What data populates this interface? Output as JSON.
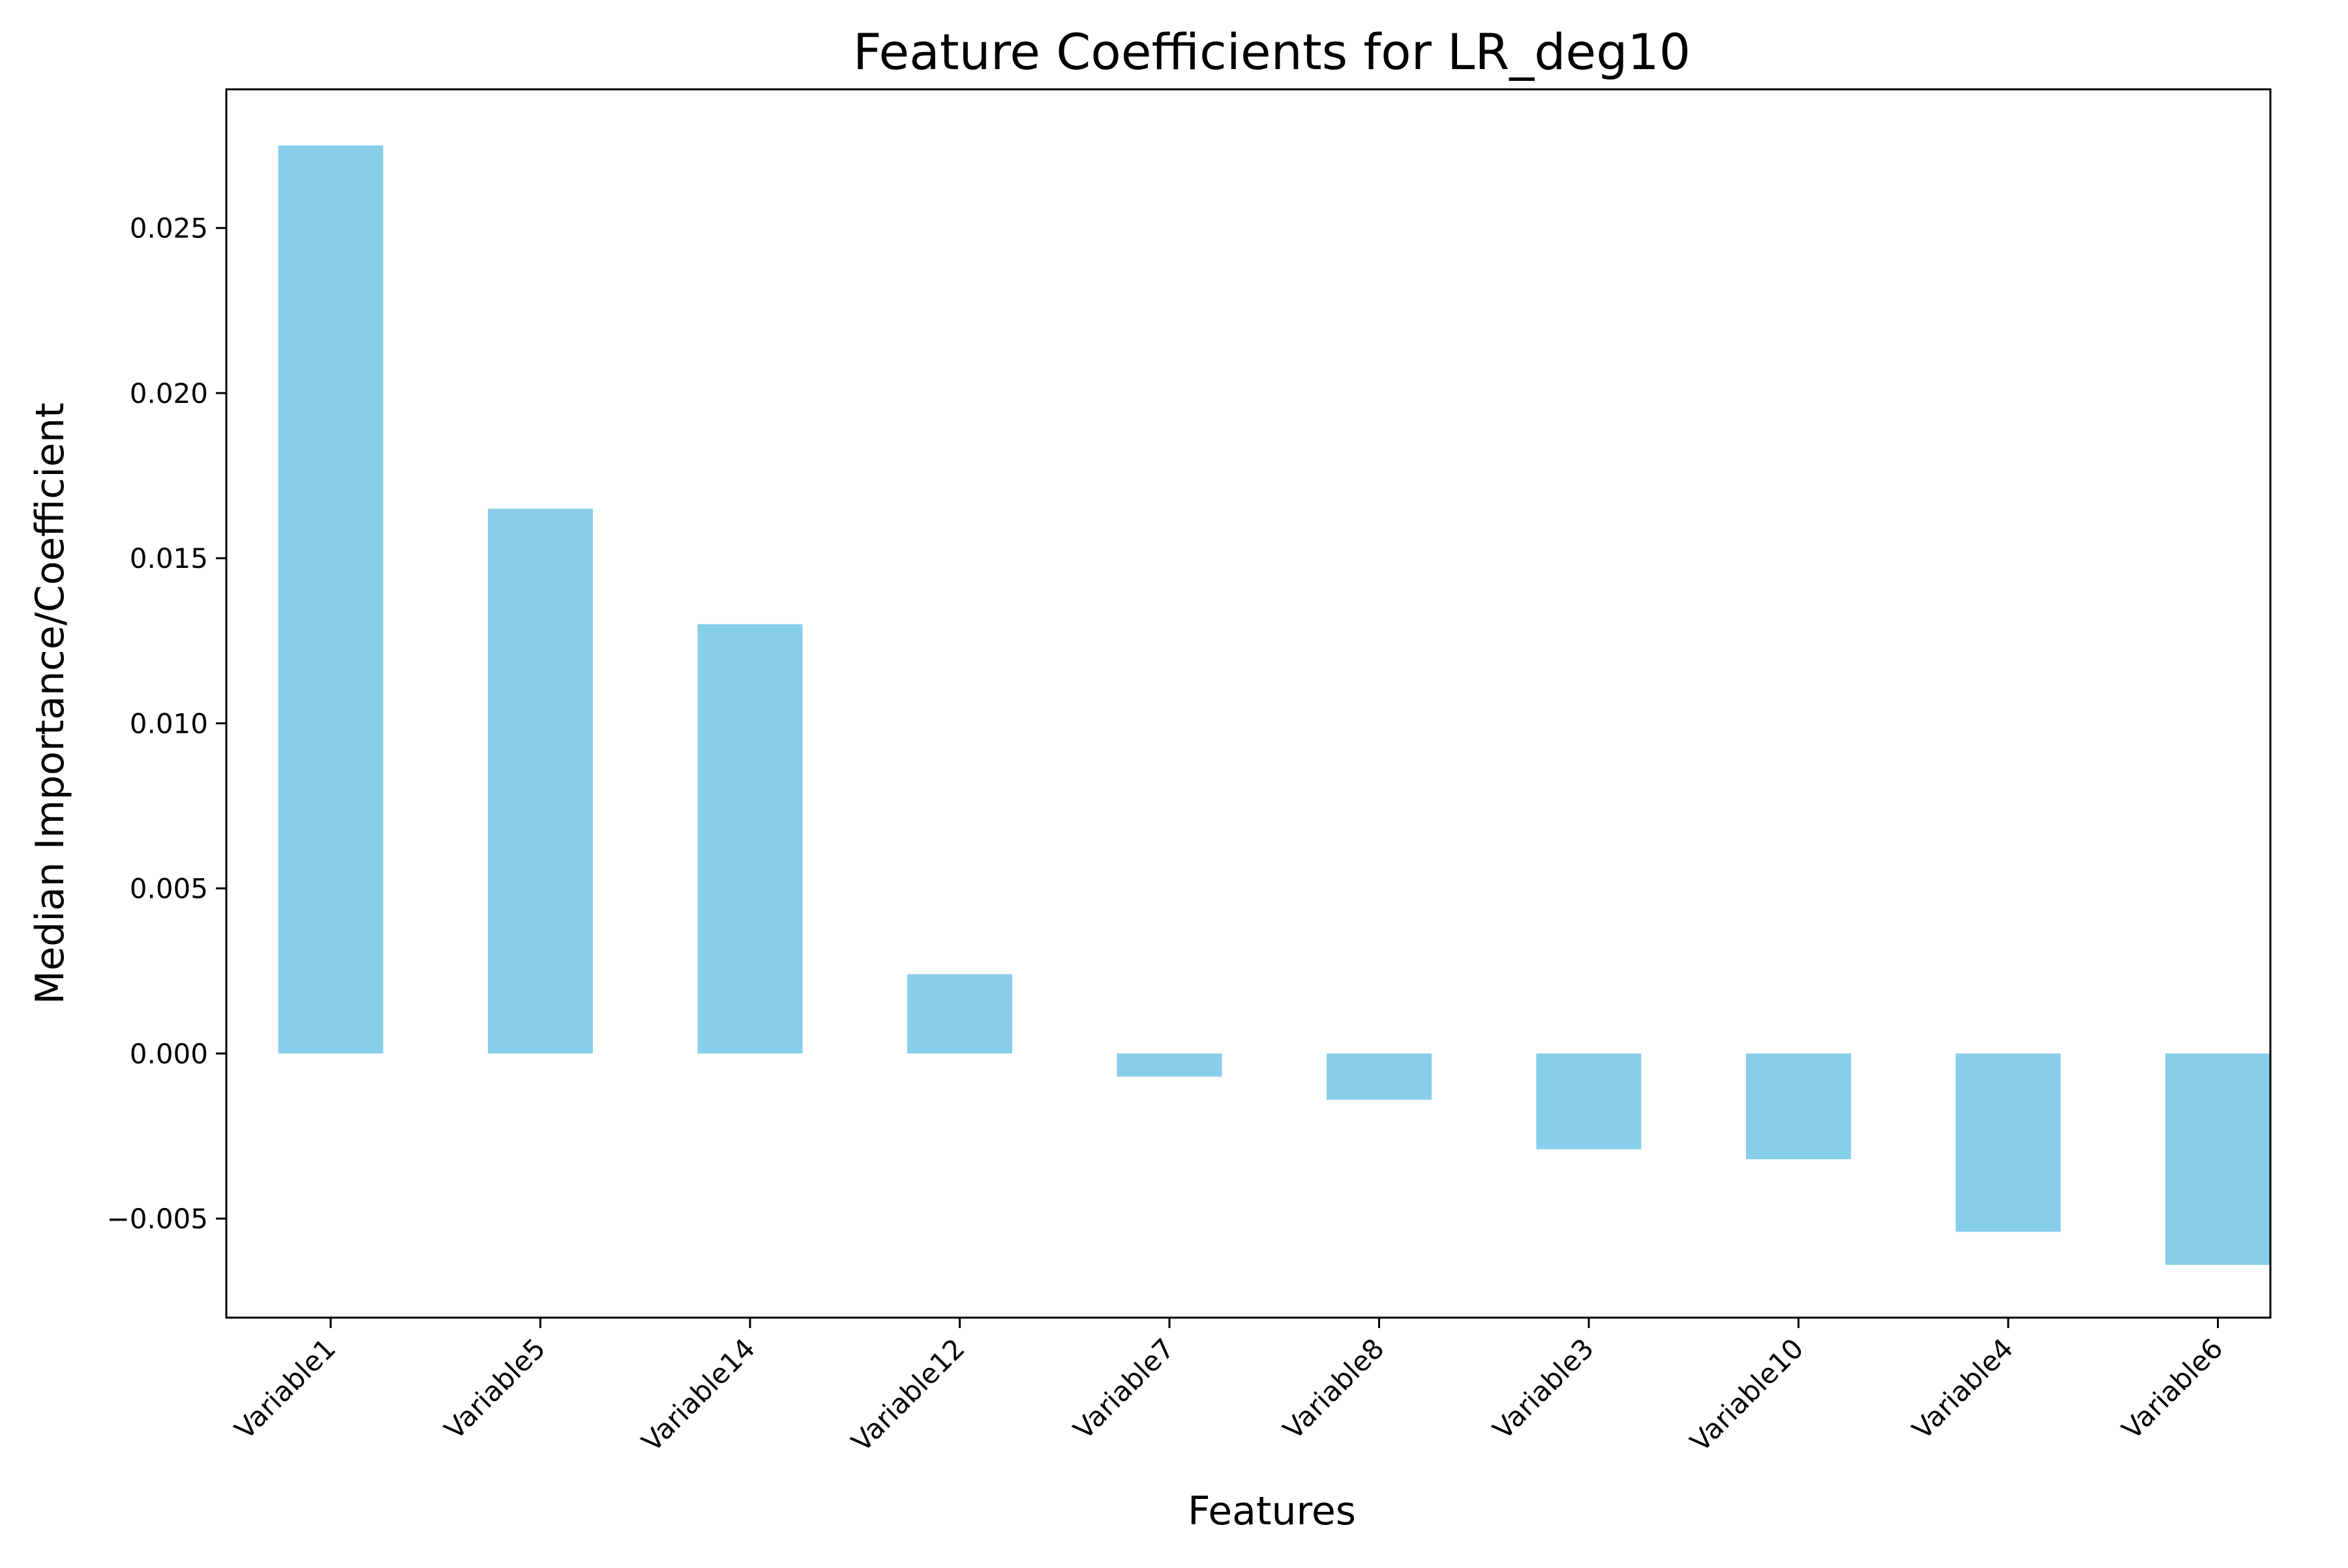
{
  "chart_data": {
    "type": "bar",
    "title": "Feature Coefficients for LR_deg10",
    "xlabel": "Features",
    "ylabel": "Median Importance/Coefficient",
    "categories": [
      "Variable1",
      "Variable5",
      "Variable14",
      "Variable12",
      "Variable7",
      "Variable8",
      "Variable3",
      "Variable10",
      "Variable4",
      "Variable6"
    ],
    "values": [
      0.0275,
      0.0165,
      0.013,
      0.0024,
      -0.0007,
      -0.0014,
      -0.0029,
      -0.0032,
      -0.0054,
      -0.0064
    ],
    "ylim": [
      -0.008,
      0.0292
    ],
    "yticks": [
      -0.005,
      0.0,
      0.005,
      0.01,
      0.015,
      0.02,
      0.025
    ],
    "ytick_labels": [
      "−0.005",
      "0.000",
      "0.005",
      "0.010",
      "0.015",
      "0.020",
      "0.025"
    ],
    "bar_color": "#87CEEB",
    "grid": false,
    "legend": "none"
  }
}
